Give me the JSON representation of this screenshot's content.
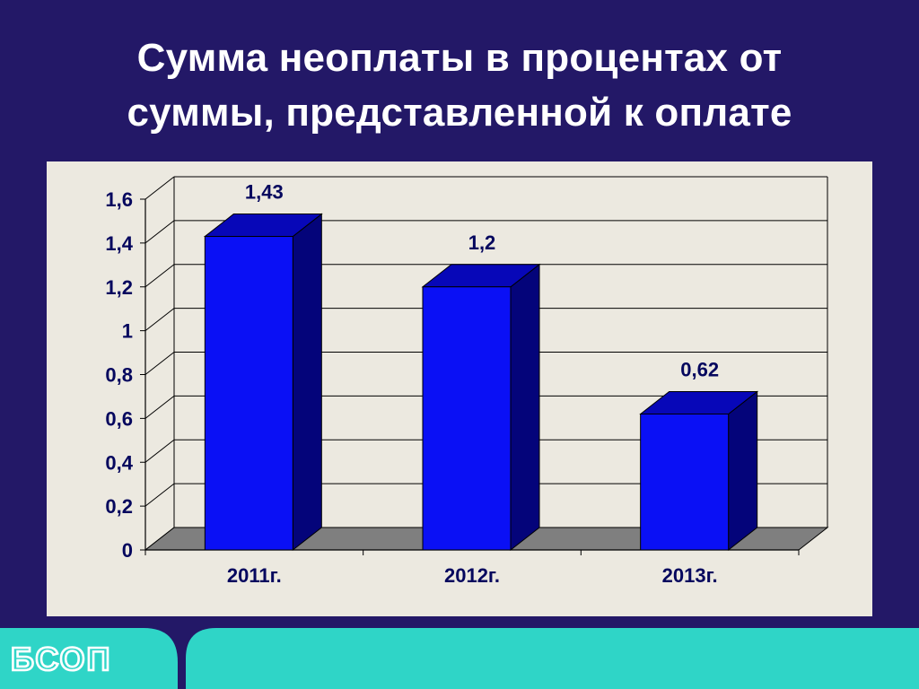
{
  "slide": {
    "title_line1": "Сумма неоплаты в процентах от",
    "title_line2": "суммы, представленной к оплате"
  },
  "logo": {
    "text": "БСОП",
    "color": "#ffffff"
  },
  "colors": {
    "background": "#231867",
    "panel": "#ece9e0",
    "footer": "#2fd5c7",
    "bar_front": "#0a10f5",
    "bar_top": "#0707b8",
    "bar_side": "#04047a",
    "floor": "#7f7f7f",
    "axis_text": "#05075e"
  },
  "chart_data": {
    "type": "bar",
    "style": "3d-column",
    "title": "",
    "xlabel": "",
    "ylabel": "",
    "categories": [
      "2011г.",
      "2012г.",
      "2013г."
    ],
    "values": [
      1.43,
      1.2,
      0.62
    ],
    "value_labels": [
      "1,43",
      "1,2",
      "0,62"
    ],
    "ylim": [
      0,
      1.6
    ],
    "yticks": [
      0,
      0.2,
      0.4,
      0.6,
      0.8,
      1,
      1.2,
      1.4,
      1.6
    ],
    "ytick_labels": [
      "0",
      "0,2",
      "0,4",
      "0,6",
      "0,8",
      "1",
      "1,2",
      "1,4",
      "1,6"
    ],
    "grid": true,
    "legend": "none"
  }
}
